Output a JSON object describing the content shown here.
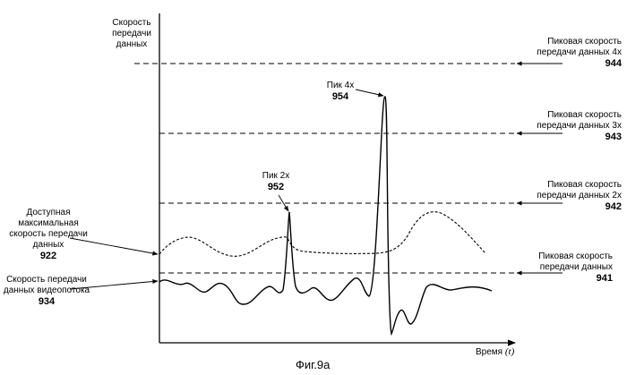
{
  "y_axis_label": [
    "Скорость",
    "передачи",
    "данных"
  ],
  "x_axis_label": "Время",
  "x_axis_symbol": "(t)",
  "levels": [
    {
      "label": [
        "Пиковая скорость",
        "передачи данных 4x"
      ],
      "ref": "944"
    },
    {
      "label": [
        "Пиковая скорость",
        "передачи данных 3x"
      ],
      "ref": "943"
    },
    {
      "label": [
        "Пиковая скорость",
        "передачи данных 2x"
      ],
      "ref": "942"
    },
    {
      "label": [
        "Пиковая скорость",
        "передачи данных"
      ],
      "ref": "941"
    }
  ],
  "curves": [
    {
      "label": [
        "Доступная",
        "максимальная",
        "скорость передачи",
        "данных"
      ],
      "ref": "922",
      "style": "dashed"
    },
    {
      "label": [
        "Скорость передачи",
        "данных видеопотока"
      ],
      "ref": "934",
      "style": "solid"
    }
  ],
  "peaks": [
    {
      "label": "Пик 2x",
      "ref": "952"
    },
    {
      "label": "Пик 4x",
      "ref": "954"
    }
  ],
  "caption": "Фиг.9а",
  "colors": {
    "ink": "#000000",
    "background": "#ffffff"
  }
}
